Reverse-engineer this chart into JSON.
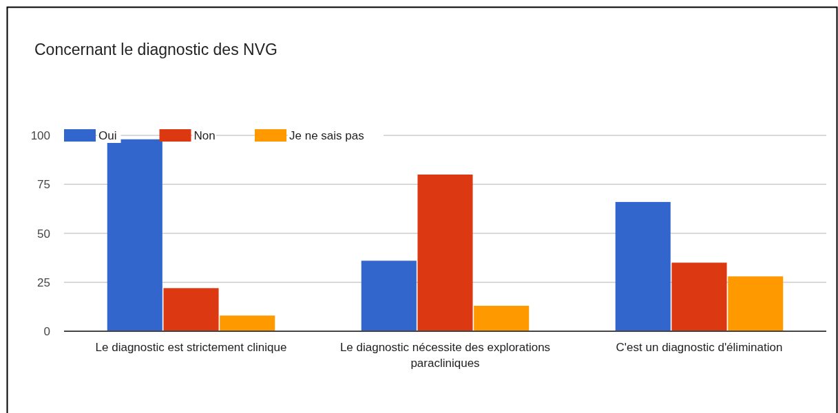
{
  "chart_data": {
    "type": "bar",
    "title": "Concernant le diagnostic des NVG",
    "categories": [
      "Le diagnostic est strictement clinique",
      "Le diagnostic nécessite des explorations paracliniques",
      "C'est un diagnostic d'élimination"
    ],
    "series": [
      {
        "name": "Oui",
        "color": "#3366cc",
        "values": [
          98,
          36,
          66
        ]
      },
      {
        "name": "Non",
        "color": "#dc3912",
        "values": [
          22,
          80,
          35
        ]
      },
      {
        "name": "Je ne sais pas",
        "color": "#ff9900",
        "values": [
          8,
          13,
          28
        ]
      }
    ],
    "ylim": [
      0,
      100
    ],
    "yticks": [
      0,
      25,
      50,
      75,
      100
    ],
    "grid": "y",
    "legend": "top left"
  }
}
